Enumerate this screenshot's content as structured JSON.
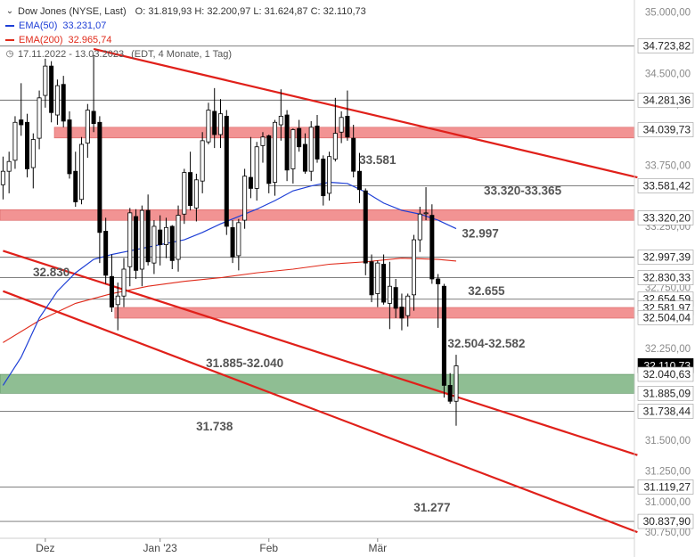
{
  "legend": {
    "instrument": "Dow Jones (NYSE, Last)",
    "ohlc": "O: 31.819,93  H: 32.200,97  L: 31.624,87  C: 32.110,73",
    "ema50_label": "EMA(50)",
    "ema50_value": "33.231,07",
    "ema200_label": "EMA(200)",
    "ema200_value": "32.965,74",
    "range_label": "17.11.2022 - 13.03.2023",
    "range_note": "(EDT, 4 Monate, 1 Tag)",
    "range_icon": "clock-icon"
  },
  "colors": {
    "up": "#ffffff",
    "down": "#000000",
    "wick": "#000000",
    "ema50": "#1e3fd6",
    "ema200": "#e02a1a",
    "trend": "#e0201a",
    "resistance_band": "#f08080",
    "support_band": "#6aa86f",
    "level_line": "#6e6e6e",
    "axis_text": "#8a8a8a",
    "annotation_text": "#555555",
    "tag_bg": "#ffffff",
    "current_tag_bg": "#000000",
    "current_tag_text": "#ffffff"
  },
  "chart_data": {
    "type": "candlestick",
    "ylim": [
      30700,
      35100
    ],
    "y_ticks": [
      {
        "v": 35000,
        "label": "35.000,00"
      },
      {
        "v": 34500,
        "label": "34.500,00"
      },
      {
        "v": 34250,
        "label": "34.250,00"
      },
      {
        "v": 33750,
        "label": "33.750,00"
      },
      {
        "v": 33250,
        "label": "33.250,00"
      },
      {
        "v": 32750,
        "label": "32.750,00"
      },
      {
        "v": 32250,
        "label": "32.250,00"
      },
      {
        "v": 31500,
        "label": "31.500,00"
      },
      {
        "v": 31250,
        "label": "31.250,00"
      },
      {
        "v": 31000,
        "label": "31.000,00"
      },
      {
        "v": 30750,
        "label": "30.750,00"
      }
    ],
    "x_ticks": [
      {
        "i": 7,
        "label": "Dez"
      },
      {
        "i": 26,
        "label": "Jan '23"
      },
      {
        "i": 44,
        "label": "Feb"
      },
      {
        "i": 62,
        "label": "Mär"
      }
    ],
    "n_slots": 105,
    "candles": [
      [
        33590,
        33820,
        33470,
        33700
      ],
      [
        33700,
        33860,
        33520,
        33780
      ],
      [
        33790,
        34150,
        33720,
        34100
      ],
      [
        34120,
        34420,
        33990,
        34080
      ],
      [
        34100,
        34170,
        33650,
        33720
      ],
      [
        33730,
        34010,
        33560,
        33960
      ],
      [
        33970,
        34360,
        33880,
        34300
      ],
      [
        34320,
        34620,
        34220,
        34560
      ],
      [
        34560,
        34600,
        34100,
        34180
      ],
      [
        34160,
        34450,
        34080,
        34400
      ],
      [
        34410,
        34480,
        34060,
        34110
      ],
      [
        34120,
        34190,
        33640,
        33680
      ],
      [
        33700,
        33860,
        33410,
        33450
      ],
      [
        33470,
        33980,
        33430,
        33920
      ],
      [
        33930,
        34250,
        33810,
        34200
      ],
      [
        34190,
        34650,
        34020,
        34090
      ],
      [
        34100,
        34150,
        32950,
        33200
      ],
      [
        33210,
        33320,
        32780,
        32850
      ],
      [
        32840,
        33020,
        32550,
        32590
      ],
      [
        32610,
        32790,
        32400,
        32680
      ],
      [
        32680,
        32990,
        32590,
        32900
      ],
      [
        32920,
        33400,
        32760,
        33360
      ],
      [
        33330,
        33390,
        32820,
        32890
      ],
      [
        32900,
        33420,
        32760,
        33380
      ],
      [
        33380,
        33510,
        32930,
        32960
      ],
      [
        32950,
        33300,
        32860,
        33250
      ],
      [
        33220,
        33340,
        32930,
        33100
      ],
      [
        33100,
        33320,
        32990,
        33240
      ],
      [
        33250,
        33260,
        32900,
        32970
      ],
      [
        32980,
        33420,
        32880,
        33340
      ],
      [
        33350,
        33720,
        33270,
        33690
      ],
      [
        33690,
        33860,
        33380,
        33420
      ],
      [
        33400,
        33680,
        33290,
        33630
      ],
      [
        33620,
        34020,
        33520,
        33950
      ],
      [
        33940,
        34260,
        33920,
        34200
      ],
      [
        34190,
        34380,
        33890,
        34000
      ],
      [
        34000,
        34290,
        33890,
        34170
      ],
      [
        34150,
        34200,
        33180,
        33250
      ],
      [
        33240,
        33300,
        32950,
        33000
      ],
      [
        33010,
        33310,
        32890,
        33280
      ],
      [
        33300,
        33720,
        33230,
        33660
      ],
      [
        33650,
        33980,
        33480,
        33560
      ],
      [
        33560,
        33940,
        33460,
        33900
      ],
      [
        33910,
        34020,
        33770,
        33980
      ],
      [
        33990,
        34000,
        33520,
        33600
      ],
      [
        33610,
        34120,
        33500,
        34100
      ],
      [
        34080,
        34370,
        33950,
        34150
      ],
      [
        34160,
        34200,
        33620,
        33710
      ],
      [
        33720,
        34050,
        33600,
        34040
      ],
      [
        34050,
        34120,
        33860,
        33900
      ],
      [
        33920,
        34010,
        33680,
        33700
      ],
      [
        33700,
        34110,
        33620,
        34060
      ],
      [
        34070,
        34160,
        33770,
        33800
      ],
      [
        33800,
        33830,
        33420,
        33500
      ],
      [
        33520,
        33860,
        33460,
        33820
      ],
      [
        33800,
        34300,
        33780,
        34010
      ],
      [
        34020,
        34190,
        33930,
        34140
      ],
      [
        34150,
        34360,
        33950,
        33980
      ],
      [
        33970,
        34080,
        33650,
        33700
      ],
      [
        33700,
        33850,
        33440,
        33550
      ],
      [
        33540,
        33560,
        32850,
        32950
      ],
      [
        32960,
        33020,
        32630,
        32690
      ],
      [
        32700,
        32970,
        32590,
        32950
      ],
      [
        32940,
        33020,
        32610,
        32630
      ],
      [
        32620,
        32960,
        32410,
        32760
      ],
      [
        32750,
        32820,
        32500,
        32580
      ],
      [
        32590,
        32700,
        32400,
        32500
      ],
      [
        32520,
        32700,
        32430,
        32680
      ],
      [
        32690,
        33180,
        32560,
        33140
      ],
      [
        33140,
        33410,
        33040,
        33350
      ],
      [
        33360,
        33570,
        33300,
        33360
      ],
      [
        33340,
        33430,
        32780,
        32820
      ],
      [
        32820,
        32860,
        32420,
        32780
      ],
      [
        32760,
        32780,
        31850,
        31950
      ],
      [
        31950,
        32050,
        31800,
        31820
      ],
      [
        31820,
        32200,
        31620,
        32110
      ]
    ],
    "ema50": [
      [
        0,
        31950
      ],
      [
        3,
        32180
      ],
      [
        6,
        32500
      ],
      [
        9,
        32720
      ],
      [
        12,
        32870
      ],
      [
        15,
        32980
      ],
      [
        18,
        33020
      ],
      [
        21,
        33050
      ],
      [
        24,
        33080
      ],
      [
        27,
        33110
      ],
      [
        30,
        33140
      ],
      [
        33,
        33200
      ],
      [
        36,
        33270
      ],
      [
        39,
        33330
      ],
      [
        42,
        33390
      ],
      [
        45,
        33460
      ],
      [
        48,
        33540
      ],
      [
        51,
        33580
      ],
      [
        54,
        33610
      ],
      [
        57,
        33600
      ],
      [
        60,
        33530
      ],
      [
        63,
        33440
      ],
      [
        66,
        33380
      ],
      [
        69,
        33350
      ],
      [
        72,
        33300
      ],
      [
        75,
        33231
      ]
    ],
    "ema200": [
      [
        0,
        32300
      ],
      [
        6,
        32480
      ],
      [
        12,
        32620
      ],
      [
        18,
        32700
      ],
      [
        24,
        32760
      ],
      [
        30,
        32800
      ],
      [
        36,
        32830
      ],
      [
        42,
        32870
      ],
      [
        48,
        32900
      ],
      [
        54,
        32940
      ],
      [
        60,
        32960
      ],
      [
        66,
        32990
      ],
      [
        72,
        32980
      ],
      [
        75,
        32966
      ]
    ],
    "trendlines": [
      {
        "from": [
          15,
          34700
        ],
        "to": [
          105,
          33650
        ]
      },
      {
        "from": [
          0,
          33050
        ],
        "to": [
          105,
          31380
        ]
      },
      {
        "from": [
          0,
          32720
        ],
        "to": [
          105,
          30750
        ]
      }
    ],
    "bands": [
      {
        "y1": 33992,
        "y2": 34040,
        "x_from": 9
      },
      {
        "y1": 33320,
        "y2": 33365,
        "x_from": 0
      },
      {
        "y1": 32504,
        "y2": 32582,
        "x_from": 19
      },
      {
        "y1": 31885,
        "y2": 32040,
        "x_from": 0
      }
    ],
    "level_lines": [
      34723.82,
      34281.36,
      33581.42,
      32997.39,
      32830.33,
      32654.59,
      31738.44,
      31119.27,
      30837.9
    ],
    "level_lines_start": [
      {
        "v": 33581.42,
        "x_from": 44
      }
    ],
    "right_tags": [
      {
        "v": 34723.82,
        "label": "34.723,82"
      },
      {
        "v": 34281.36,
        "label": "34.281,36"
      },
      {
        "v": 34039.73,
        "label": "34.039,73"
      },
      {
        "v": 33581.42,
        "label": "33.581,42"
      },
      {
        "v": 33320.2,
        "label": "33.320,20"
      },
      {
        "v": 32997.39,
        "label": "32.997,39"
      },
      {
        "v": 32830.33,
        "label": "32.830,33"
      },
      {
        "v": 32654.59,
        "label": "32.654,59"
      },
      {
        "v": 32581.97,
        "label": "32.581,97"
      },
      {
        "v": 32504.04,
        "label": "32.504,04"
      },
      {
        "v": 32110.73,
        "label": "32.110,73",
        "current": true
      },
      {
        "v": 32040.63,
        "label": "32.040,63"
      },
      {
        "v": 31885.09,
        "label": "31.885,09"
      },
      {
        "v": 31738.44,
        "label": "31.738,44"
      },
      {
        "v": 31119.27,
        "label": "31.119,27"
      },
      {
        "v": 30837.9,
        "label": "30.837,90"
      }
    ],
    "annotations": [
      {
        "text": "33.581",
        "i": 62,
        "v": 33760,
        "anchor": "middle"
      },
      {
        "text": "33.320-33.365",
        "i": 86,
        "v": 33510,
        "anchor": "middle"
      },
      {
        "text": "32.997",
        "i": 79,
        "v": 33160,
        "anchor": "middle"
      },
      {
        "text": "32.830",
        "i": 8,
        "v": 32840,
        "anchor": "middle"
      },
      {
        "text": "32.655",
        "i": 80,
        "v": 32690,
        "anchor": "middle"
      },
      {
        "text": "32.504-32.582",
        "i": 80,
        "v": 32260,
        "anchor": "middle"
      },
      {
        "text": "31.885-32.040",
        "i": 40,
        "v": 32100,
        "anchor": "middle"
      },
      {
        "text": "31.738",
        "i": 35,
        "v": 31580,
        "anchor": "middle"
      },
      {
        "text": "31.277",
        "i": 71,
        "v": 30920,
        "anchor": "middle"
      }
    ]
  }
}
